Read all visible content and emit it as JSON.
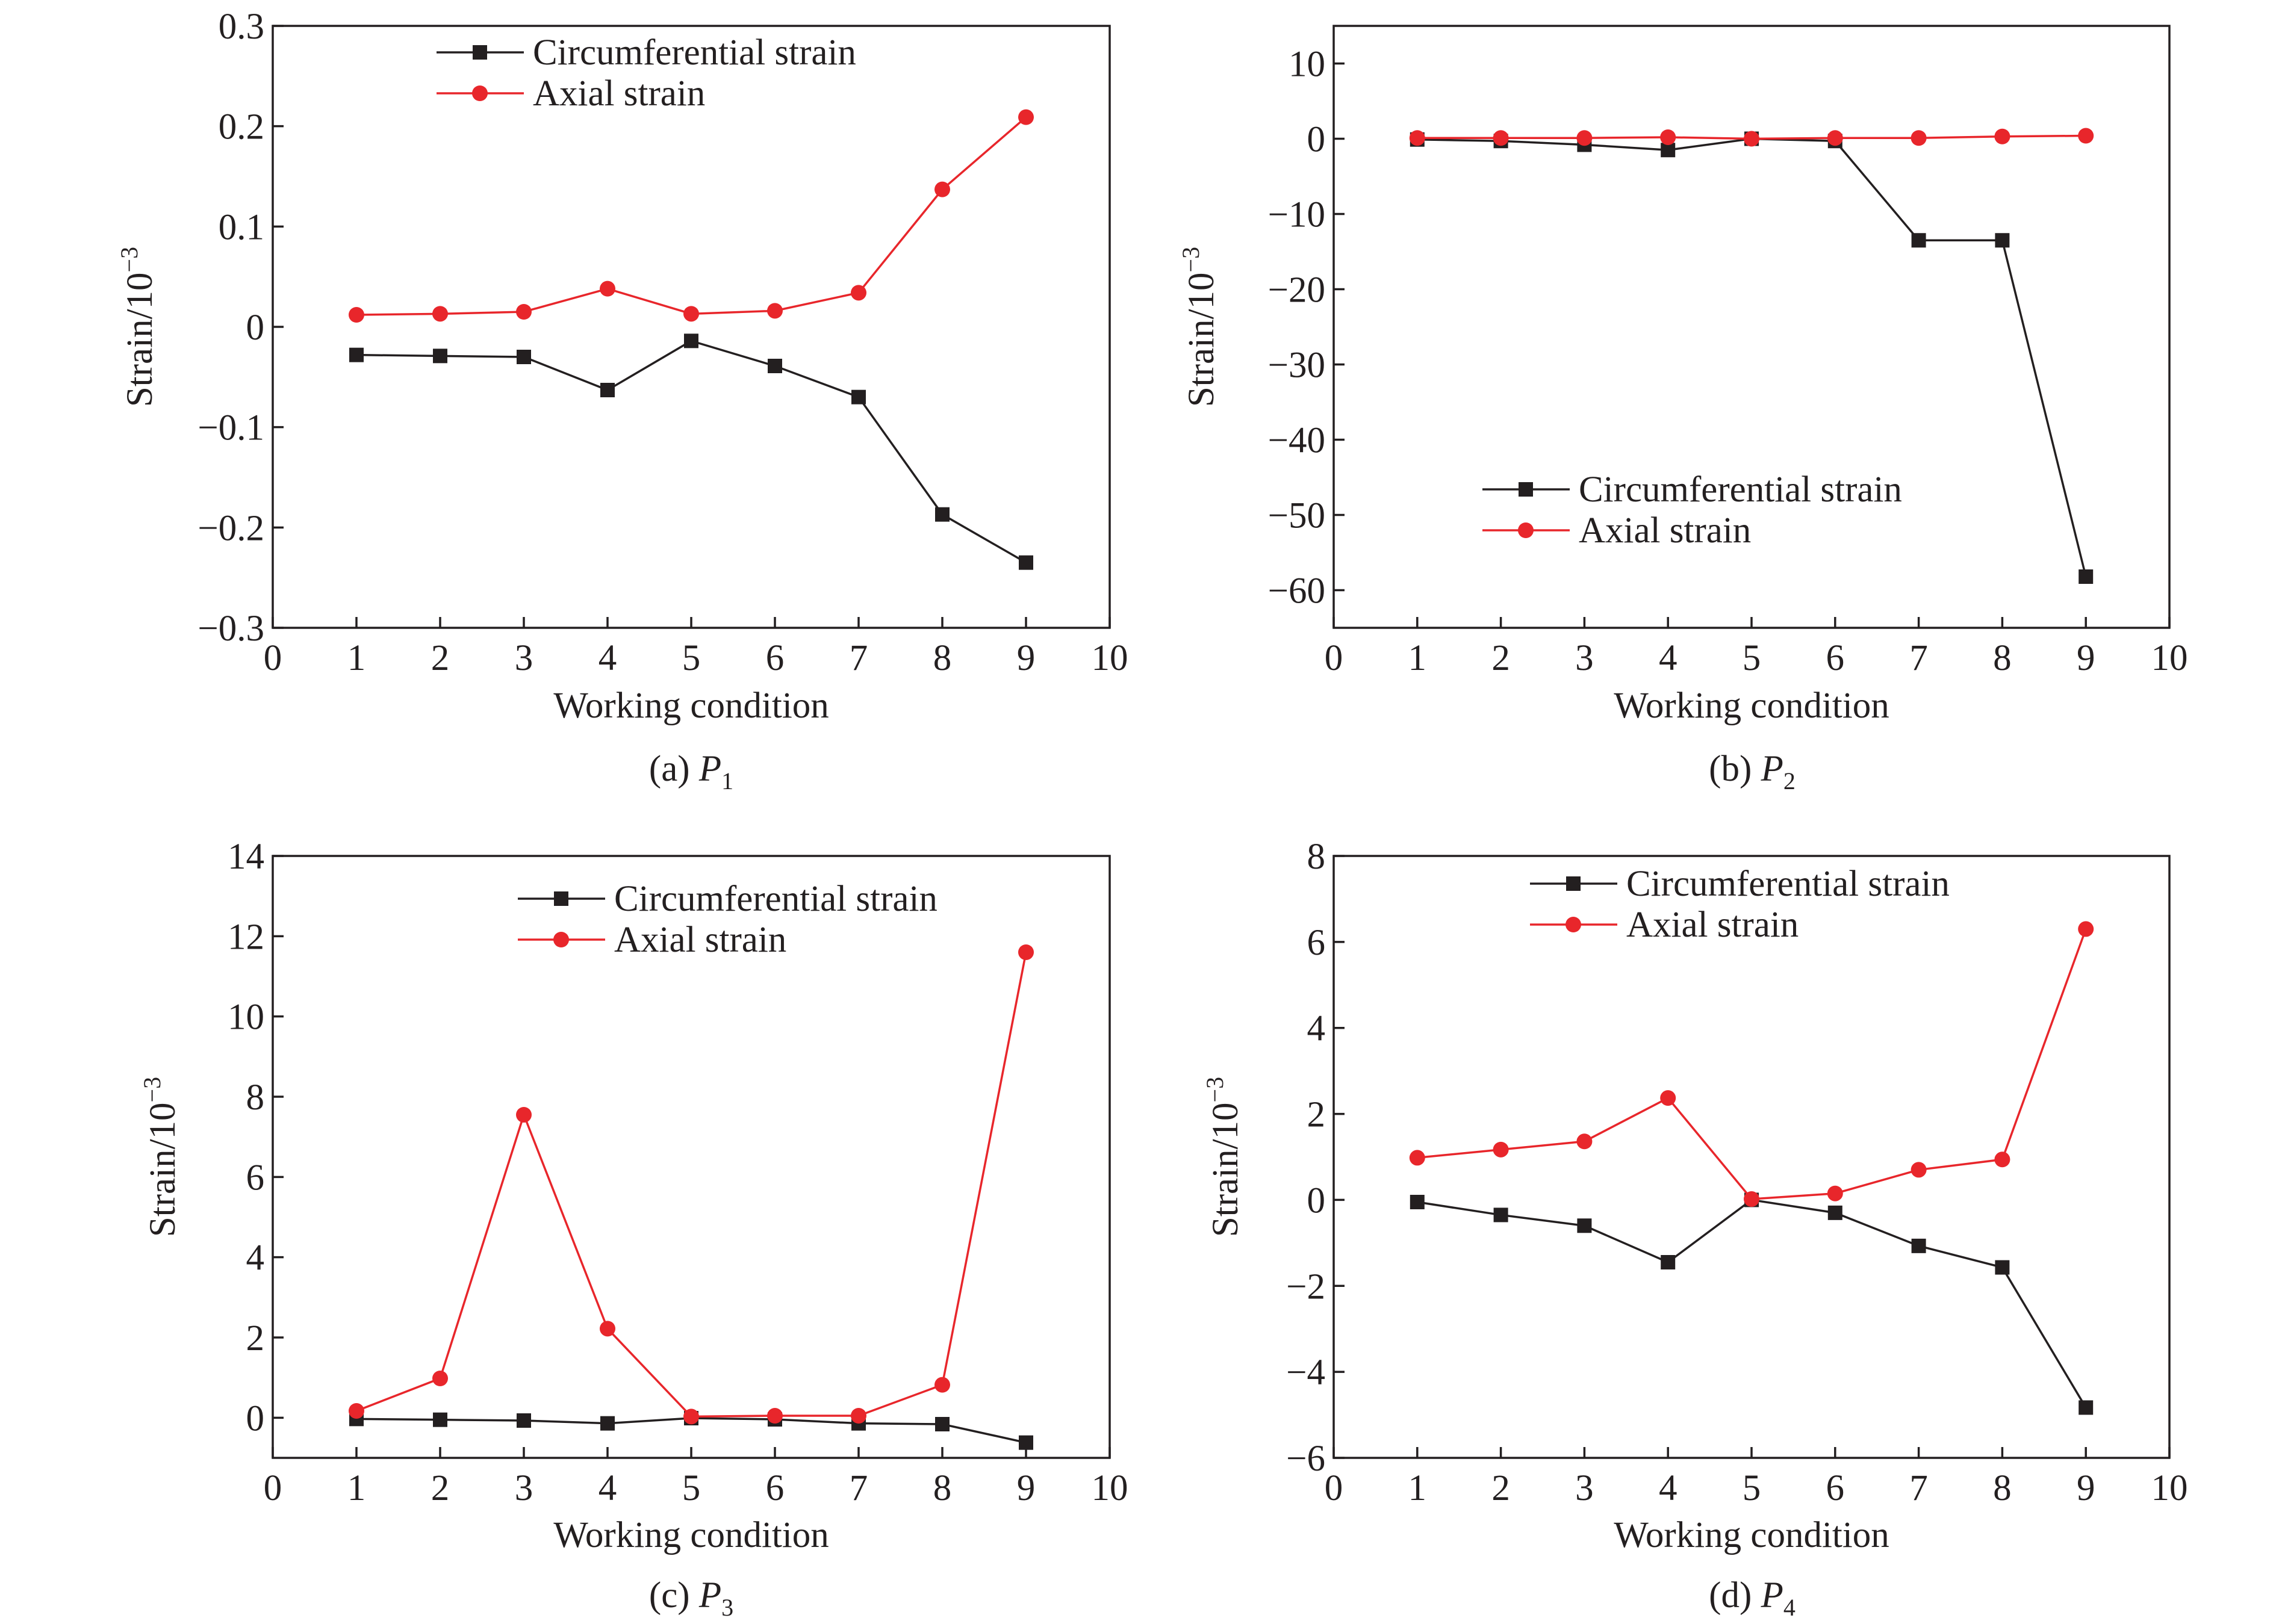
{
  "colors": {
    "circumferential": "#231f20",
    "axial": "#e8262b",
    "axis": "#231f20"
  },
  "chart_data": [
    {
      "type": "line",
      "caption": {
        "prefix": "(a) ",
        "var": "P",
        "sub": "1"
      },
      "xlabel": "Working condition",
      "ylabel": {
        "base": "Strain/10",
        "exp": "−3"
      },
      "xlim": [
        0,
        10
      ],
      "ylim": [
        -0.3,
        0.3
      ],
      "xticks": [
        0,
        1,
        2,
        3,
        4,
        5,
        6,
        7,
        8,
        9,
        10
      ],
      "xtick_labels": [
        "0",
        "1",
        "2",
        "3",
        "4",
        "5",
        "6",
        "7",
        "8",
        "9",
        "10"
      ],
      "yticks": [
        -0.3,
        -0.2,
        -0.1,
        0,
        0.1,
        0.2,
        0.3
      ],
      "ytick_labels": [
        "−0.3",
        "−0.2",
        "−0.1",
        "0",
        "0.1",
        "0.2",
        "0.3"
      ],
      "legend": "top-center",
      "grid": false,
      "x": [
        1,
        2,
        3,
        4,
        5,
        6,
        7,
        8,
        9
      ],
      "series": [
        {
          "name": "Circumferential strain",
          "marker": "square",
          "color": "#231f20",
          "values": [
            -0.028,
            -0.029,
            -0.03,
            -0.063,
            -0.014,
            -0.039,
            -0.07,
            -0.187,
            -0.235
          ]
        },
        {
          "name": "Axial strain",
          "marker": "circle",
          "color": "#e8262b",
          "values": [
            0.012,
            0.013,
            0.015,
            0.038,
            0.013,
            0.016,
            0.034,
            0.137,
            0.209
          ]
        }
      ]
    },
    {
      "type": "line",
      "caption": {
        "prefix": "(b) ",
        "var": "P",
        "sub": "2"
      },
      "xlabel": "Working condition",
      "ylabel": {
        "base": "Strain/10",
        "exp": "−3"
      },
      "xlim": [
        0,
        10
      ],
      "ylim": [
        -65,
        15
      ],
      "xticks": [
        0,
        1,
        2,
        3,
        4,
        5,
        6,
        7,
        8,
        9,
        10
      ],
      "xtick_labels": [
        "0",
        "1",
        "2",
        "3",
        "4",
        "5",
        "6",
        "7",
        "8",
        "9",
        "10"
      ],
      "yticks": [
        -60,
        -50,
        -40,
        -30,
        -20,
        -10,
        0,
        10
      ],
      "ytick_labels": [
        "−60",
        "−50",
        "−40",
        "−30",
        "−20",
        "−10",
        "0",
        "10"
      ],
      "legend": "lower-center",
      "grid": false,
      "x": [
        1,
        2,
        3,
        4,
        5,
        6,
        7,
        8,
        9
      ],
      "series": [
        {
          "name": "Circumferential strain",
          "marker": "square",
          "color": "#231f20",
          "values": [
            -0.1,
            -0.3,
            -0.8,
            -1.5,
            0.0,
            -0.3,
            -13.5,
            -13.5,
            -58.2
          ]
        },
        {
          "name": "Axial strain",
          "marker": "circle",
          "color": "#e8262b",
          "values": [
            0.1,
            0.1,
            0.1,
            0.2,
            0.0,
            0.1,
            0.1,
            0.3,
            0.4
          ]
        }
      ]
    },
    {
      "type": "line",
      "caption": {
        "prefix": "(c) ",
        "var": "P",
        "sub": "3"
      },
      "xlabel": "Working condition",
      "ylabel": {
        "base": "Strain/10",
        "exp": "−3"
      },
      "xlim": [
        0,
        10
      ],
      "ylim": [
        -1,
        14
      ],
      "xticks": [
        0,
        1,
        2,
        3,
        4,
        5,
        6,
        7,
        8,
        9,
        10
      ],
      "xtick_labels": [
        "0",
        "1",
        "2",
        "3",
        "4",
        "5",
        "6",
        "7",
        "8",
        "9",
        "10"
      ],
      "yticks": [
        0,
        2,
        4,
        6,
        8,
        10,
        12,
        14
      ],
      "ytick_labels": [
        "0",
        "2",
        "4",
        "6",
        "8",
        "10",
        "12",
        "14"
      ],
      "legend": "top-center",
      "grid": false,
      "x": [
        1,
        2,
        3,
        4,
        5,
        6,
        7,
        8,
        9
      ],
      "series": [
        {
          "name": "Circumferential strain",
          "marker": "square",
          "color": "#231f20",
          "values": [
            -0.03,
            -0.05,
            -0.07,
            -0.14,
            -0.01,
            -0.04,
            -0.14,
            -0.16,
            -0.62
          ]
        },
        {
          "name": "Axial strain",
          "marker": "circle",
          "color": "#e8262b",
          "values": [
            0.17,
            0.98,
            7.55,
            2.22,
            0.03,
            0.05,
            0.05,
            0.82,
            11.6
          ]
        }
      ]
    },
    {
      "type": "line",
      "caption": {
        "prefix": "(d) ",
        "var": "P",
        "sub": "4"
      },
      "xlabel": "Working condition",
      "ylabel": {
        "base": "Strain/10",
        "exp": "−3"
      },
      "xlim": [
        0,
        10
      ],
      "ylim": [
        -6,
        8
      ],
      "xticks": [
        0,
        1,
        2,
        3,
        4,
        5,
        6,
        7,
        8,
        9,
        10
      ],
      "xtick_labels": [
        "0",
        "1",
        "2",
        "3",
        "4",
        "5",
        "6",
        "7",
        "8",
        "9",
        "10"
      ],
      "yticks": [
        -6,
        -4,
        -2,
        0,
        2,
        4,
        6,
        8
      ],
      "ytick_labels": [
        "−6",
        "−4",
        "−2",
        "0",
        "2",
        "4",
        "6",
        "8"
      ],
      "legend": "top-center",
      "grid": false,
      "x": [
        1,
        2,
        3,
        4,
        5,
        6,
        7,
        8,
        9
      ],
      "series": [
        {
          "name": "Circumferential strain",
          "marker": "square",
          "color": "#231f20",
          "values": [
            -0.05,
            -0.35,
            -0.6,
            -1.45,
            0.0,
            -0.3,
            -1.07,
            -1.57,
            -4.83
          ]
        },
        {
          "name": "Axial strain",
          "marker": "circle",
          "color": "#e8262b",
          "values": [
            0.98,
            1.17,
            1.36,
            2.37,
            0.02,
            0.15,
            0.7,
            0.94,
            6.3
          ]
        }
      ]
    }
  ]
}
